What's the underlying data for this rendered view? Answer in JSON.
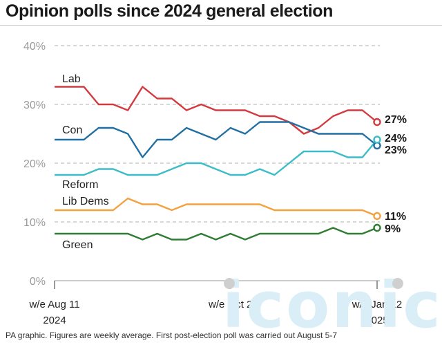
{
  "title": "Opinion polls since 2024 general election",
  "footer": "PA graphic. Figures are weekly average. First post-election poll was carried out August 5-7",
  "watermark": "iconic",
  "chart_data": {
    "type": "line",
    "title": "Opinion polls since 2024 general election",
    "xlabel": "",
    "ylabel": "",
    "ylim": [
      0,
      40
    ],
    "yticks": [
      "0%",
      "10%",
      "20%",
      "30%",
      "40%"
    ],
    "grid": true,
    "xtick_labels": [
      {
        "line1": "w/e Aug 11",
        "line2": "2024",
        "index": 0
      },
      {
        "line1": "w/e Oct 2",
        "line2": "",
        "index": 12
      },
      {
        "line1": "w/e Jan 12",
        "line2": "2025",
        "index": 22
      }
    ],
    "series": [
      {
        "name": "Lab",
        "color": "#d33a3f",
        "end_label": "27%",
        "values": [
          33,
          33,
          33,
          30,
          30,
          29,
          33,
          31,
          31,
          29,
          30,
          29,
          29,
          29,
          28,
          28,
          27,
          25,
          26,
          28,
          29,
          29,
          27
        ]
      },
      {
        "name": "Con",
        "color": "#1f6fa3",
        "end_label": "23%",
        "values": [
          24,
          24,
          24,
          26,
          26,
          25,
          21,
          24,
          24,
          26,
          25,
          24,
          26,
          25,
          27,
          27,
          27,
          26,
          25,
          25,
          25,
          25,
          23
        ]
      },
      {
        "name": "Reform",
        "color": "#3bbcc7",
        "end_label": "24%",
        "values": [
          18,
          18,
          18,
          19,
          19,
          18,
          18,
          18,
          19,
          20,
          20,
          19,
          18,
          18,
          19,
          18,
          20,
          22,
          22,
          22,
          21,
          21,
          24
        ]
      },
      {
        "name": "Lib Dems",
        "color": "#f4a13d",
        "end_label": "11%",
        "values": [
          12,
          12,
          12,
          12,
          12,
          14,
          13,
          13,
          12,
          13,
          13,
          13,
          13,
          13,
          13,
          12,
          12,
          12,
          12,
          12,
          12,
          12,
          11
        ]
      },
      {
        "name": "Green",
        "color": "#2e7d32",
        "end_label": "9%",
        "values": [
          8,
          8,
          8,
          8,
          8,
          8,
          7,
          8,
          7,
          7,
          8,
          7,
          8,
          7,
          8,
          8,
          8,
          8,
          8,
          9,
          8,
          8,
          9
        ]
      }
    ]
  }
}
